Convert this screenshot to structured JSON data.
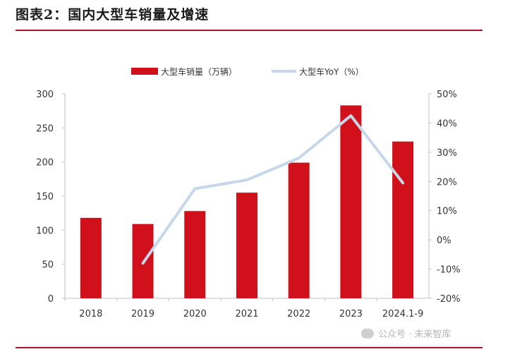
{
  "figure": {
    "title": "图表2：国内大型车销量及增速",
    "watermark": "公众号 · 未来智库"
  },
  "colors": {
    "bar": "#d0111b",
    "line": "#c5d7e8",
    "rule": "#a8112a",
    "axis": "#bfbfbf"
  },
  "chart_data": {
    "type": "bar+line",
    "categories": [
      "2018",
      "2019",
      "2020",
      "2021",
      "2022",
      "2023",
      "2024.1-9"
    ],
    "series": [
      {
        "name": "大型车销量（万辆）",
        "type": "bar",
        "axis": "left",
        "values": [
          118,
          109,
          128,
          155,
          199,
          283,
          230
        ]
      },
      {
        "name": "大型车YoY（%）",
        "type": "line",
        "axis": "right",
        "values": [
          null,
          -8,
          17.5,
          20.5,
          28,
          42.5,
          19.5
        ]
      }
    ],
    "y_left": {
      "ylim": [
        0,
        300
      ],
      "ticks": [
        "0",
        "50",
        "100",
        "150",
        "200",
        "250",
        "300"
      ]
    },
    "y_right": {
      "ylim": [
        -20,
        50
      ],
      "ticks": [
        "-20%",
        "-10%",
        "0%",
        "10%",
        "20%",
        "30%",
        "40%",
        "50%"
      ]
    },
    "legend_position": "top-center",
    "grid": false
  }
}
